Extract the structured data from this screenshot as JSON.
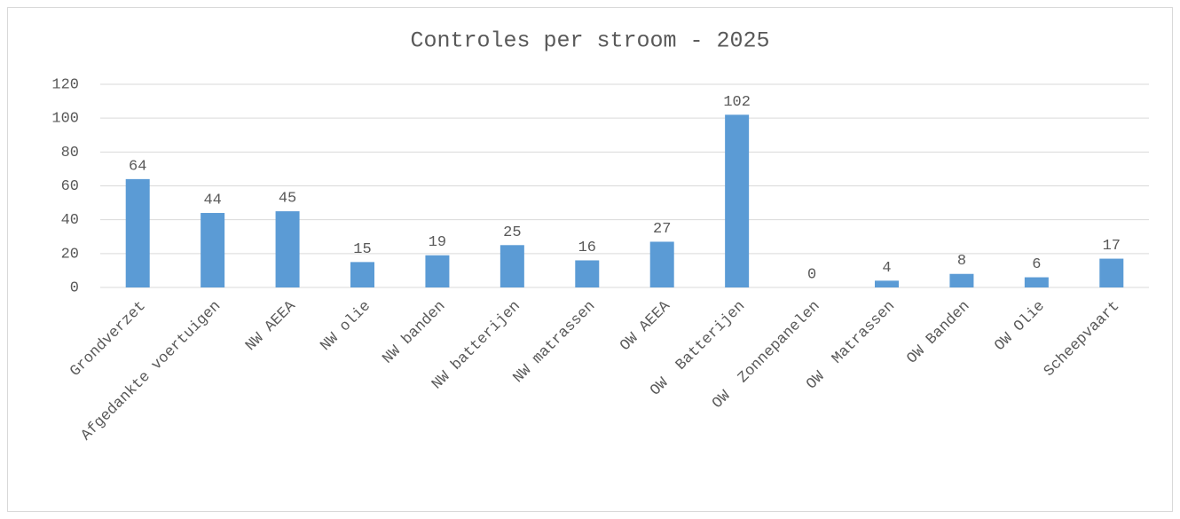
{
  "chart_data": {
    "type": "bar",
    "title": "Controles per stroom - 2025",
    "categories": [
      "Grondverzet",
      "Afgedankte voertuigen",
      "NW AEEA",
      "NW olie",
      "NW banden",
      "NW batterijen",
      "NW matrassen",
      "OW AEEA",
      "OW  Batterijen",
      "OW  Zonnepanelen",
      "OW  Matrassen",
      "OW Banden",
      "OW Olie",
      "Scheepvaart"
    ],
    "values": [
      64,
      44,
      45,
      15,
      19,
      25,
      16,
      27,
      102,
      0,
      4,
      8,
      6,
      17
    ],
    "color": "#5b9bd5",
    "ylim": [
      0,
      120
    ],
    "yticks": [
      0,
      20,
      40,
      60,
      80,
      100,
      120
    ],
    "grid": true
  }
}
